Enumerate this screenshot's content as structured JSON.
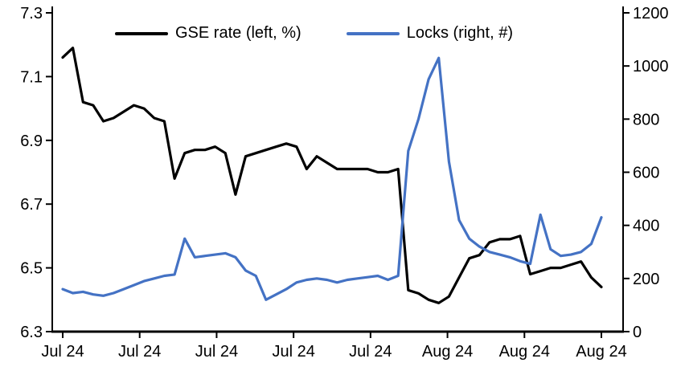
{
  "chart_data": {
    "type": "line",
    "title": "",
    "x_labels": [
      "Jul 24",
      "Jul 24",
      "Jul 24",
      "Jul 24",
      "Jul 24",
      "Aug 24",
      "Aug 24",
      "Aug 24"
    ],
    "left_axis": {
      "min": 6.3,
      "max": 7.3,
      "ticks": [
        7.3,
        7.1,
        6.9,
        6.7,
        6.5,
        6.3
      ]
    },
    "right_axis": {
      "min": 0,
      "max": 1200,
      "ticks": [
        1200,
        1000,
        800,
        600,
        400,
        200,
        0
      ]
    },
    "grid": false,
    "legend_position": "top-inside",
    "series": [
      {
        "name": "GSE rate (left, %)",
        "axis": "left",
        "color": "#000000",
        "values": [
          7.16,
          7.19,
          7.02,
          7.01,
          6.96,
          6.97,
          6.99,
          7.01,
          7.0,
          6.97,
          6.96,
          6.78,
          6.86,
          6.87,
          6.87,
          6.88,
          6.86,
          6.73,
          6.85,
          6.86,
          6.87,
          6.88,
          6.89,
          6.88,
          6.81,
          6.85,
          6.83,
          6.81,
          6.81,
          6.81,
          6.81,
          6.8,
          6.8,
          6.81,
          6.43,
          6.42,
          6.4,
          6.39,
          6.41,
          6.47,
          6.53,
          6.54,
          6.58,
          6.59,
          6.59,
          6.6,
          6.48,
          6.49,
          6.5,
          6.5,
          6.51,
          6.52,
          6.47,
          6.44
        ]
      },
      {
        "name": "Locks (right, #)",
        "axis": "right",
        "color": "#4472C4",
        "values": [
          160,
          145,
          150,
          140,
          135,
          145,
          160,
          175,
          190,
          200,
          210,
          215,
          350,
          280,
          285,
          290,
          295,
          280,
          230,
          210,
          120,
          140,
          160,
          185,
          195,
          200,
          195,
          185,
          195,
          200,
          205,
          210,
          195,
          210,
          680,
          800,
          950,
          1030,
          640,
          420,
          350,
          320,
          300,
          290,
          280,
          265,
          255,
          440,
          310,
          285,
          290,
          300,
          330,
          430
        ]
      }
    ]
  }
}
